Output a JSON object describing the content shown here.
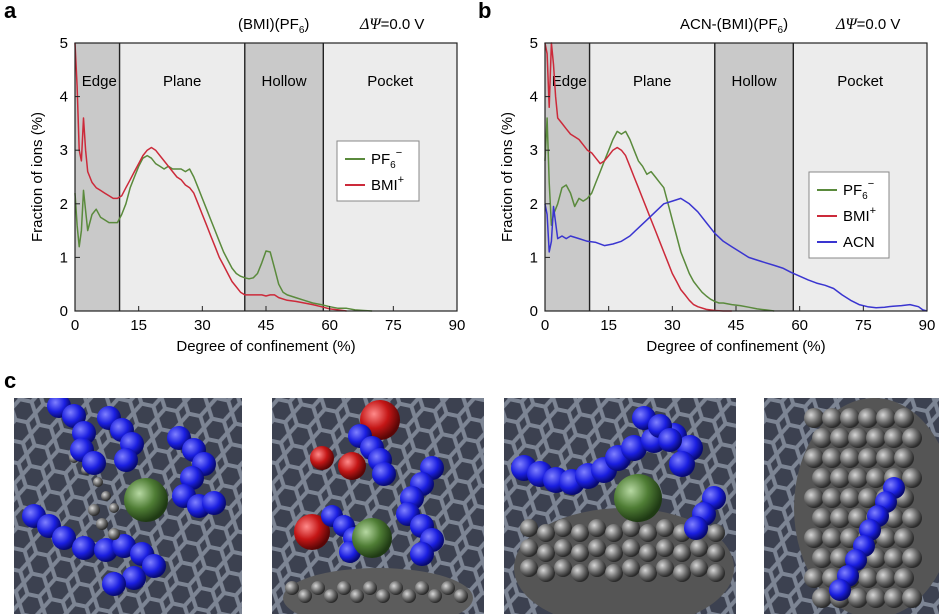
{
  "panels": {
    "a": "a",
    "b": "b",
    "c": "c"
  },
  "header_a": {
    "system": "(BMI)(PF",
    "system_sub": "6",
    "system_end": ")",
    "potential": "ΔΨ",
    "potential_value": "=0.0 V"
  },
  "header_b": {
    "system": "ACN-(BMI)(PF",
    "system_sub": "6",
    "system_end": ")",
    "potential": "ΔΨ",
    "potential_value": "=0.0 V"
  },
  "colors": {
    "pf6": "#5a8a3c",
    "bmi": "#cc2a3a",
    "acn": "#3a35d0",
    "region_dark": "#c9c9c9",
    "region_light": "#ececec"
  },
  "regions": [
    "Edge",
    "Plane",
    "Hollow",
    "Pocket"
  ],
  "chart_data": [
    {
      "type": "line",
      "xlabel": "Degree of confinement (%)",
      "ylabel": "Fraction of ions (%)",
      "xlim": [
        0,
        90
      ],
      "ylim": [
        0,
        5
      ],
      "xticks": [
        "0",
        "15",
        "30",
        "45",
        "60",
        "75",
        "90"
      ],
      "yticks": [
        "0",
        "1",
        "2",
        "3",
        "4",
        "5"
      ],
      "region_bounds": [
        0,
        10.5,
        40,
        58.5,
        90
      ],
      "legend_position": "right",
      "legend": [
        {
          "label": "PF",
          "sub": "6",
          "sup": "−"
        },
        {
          "label": "BMI",
          "sub": "",
          "sup": "+"
        }
      ],
      "series": [
        {
          "name": "PF6−",
          "x": [
            0,
            0.5,
            1,
            1.5,
            2,
            3,
            4,
            5,
            6,
            7,
            8,
            9,
            10,
            11,
            12,
            13,
            14,
            15,
            16,
            17,
            18,
            19,
            20,
            21,
            22,
            23,
            24,
            25,
            26,
            27,
            28,
            29,
            30,
            31,
            32,
            33,
            34,
            35,
            36,
            37,
            38,
            39,
            40,
            41,
            42,
            43,
            44,
            45,
            46,
            47,
            48,
            49,
            50,
            52,
            54,
            56,
            58,
            60,
            62,
            64,
            66,
            68,
            70
          ],
          "y": [
            2.2,
            1.6,
            1.2,
            1.5,
            2.25,
            1.5,
            1.8,
            1.9,
            1.75,
            1.7,
            1.65,
            1.65,
            1.65,
            1.8,
            2.0,
            2.3,
            2.5,
            2.7,
            2.85,
            2.9,
            2.85,
            2.75,
            2.7,
            2.65,
            2.7,
            2.65,
            2.65,
            2.65,
            2.6,
            2.65,
            2.5,
            2.3,
            2.1,
            1.9,
            1.7,
            1.5,
            1.3,
            1.1,
            0.95,
            0.8,
            0.7,
            0.65,
            0.62,
            0.6,
            0.62,
            0.7,
            0.9,
            1.12,
            1.1,
            0.8,
            0.5,
            0.35,
            0.3,
            0.25,
            0.2,
            0.15,
            0.12,
            0.08,
            0.05,
            0.05,
            0.02,
            0.01,
            0.0
          ]
        },
        {
          "name": "BMI+",
          "x": [
            0,
            0.5,
            1,
            1.5,
            2,
            2.5,
            3,
            4,
            5,
            6,
            7,
            8,
            9,
            10,
            11,
            12,
            13,
            14,
            15,
            16,
            17,
            18,
            19,
            20,
            21,
            22,
            23,
            24,
            25,
            26,
            27,
            28,
            29,
            30,
            31,
            32,
            33,
            34,
            35,
            36,
            37,
            38,
            39,
            40,
            41,
            42,
            43,
            44,
            45,
            46,
            47,
            48,
            50,
            52,
            54,
            56,
            58,
            60,
            62,
            64
          ],
          "y": [
            5.0,
            4.2,
            3.0,
            2.8,
            3.6,
            3.0,
            2.6,
            2.4,
            2.3,
            2.25,
            2.2,
            2.15,
            2.1,
            2.1,
            2.15,
            2.3,
            2.45,
            2.6,
            2.75,
            2.9,
            3.0,
            3.05,
            3.0,
            2.9,
            2.8,
            2.7,
            2.6,
            2.5,
            2.45,
            2.35,
            2.3,
            2.2,
            2.0,
            1.8,
            1.6,
            1.4,
            1.2,
            1.0,
            0.85,
            0.7,
            0.55,
            0.45,
            0.35,
            0.3,
            0.3,
            0.3,
            0.3,
            0.3,
            0.28,
            0.3,
            0.3,
            0.25,
            0.2,
            0.18,
            0.15,
            0.12,
            0.08,
            0.04,
            0.02,
            0.0
          ]
        }
      ]
    },
    {
      "type": "line",
      "xlabel": "Degree of confinement (%)",
      "ylabel": "Fraction of ions (%)",
      "xlim": [
        0,
        90
      ],
      "ylim": [
        0,
        5
      ],
      "xticks": [
        "0",
        "15",
        "30",
        "45",
        "60",
        "75",
        "90"
      ],
      "yticks": [
        "0",
        "1",
        "2",
        "3",
        "4",
        "5"
      ],
      "region_bounds": [
        0,
        10.5,
        40,
        58.5,
        90
      ],
      "legend_position": "right",
      "legend": [
        {
          "label": "PF",
          "sub": "6",
          "sup": "−"
        },
        {
          "label": "BMI",
          "sub": "",
          "sup": "+"
        },
        {
          "label": "ACN",
          "sub": "",
          "sup": ""
        }
      ],
      "series": [
        {
          "name": "PF6−",
          "x": [
            0,
            0.5,
            1,
            1.5,
            2,
            3,
            4,
            5,
            6,
            7,
            8,
            9,
            10,
            11,
            12,
            13,
            14,
            15,
            16,
            17,
            18,
            19,
            20,
            21,
            22,
            23,
            24,
            25,
            26,
            27,
            28,
            29,
            30,
            31,
            32,
            33,
            34,
            35,
            36,
            37,
            38,
            39,
            40,
            41,
            42,
            44,
            46,
            48,
            50,
            52,
            54
          ],
          "y": [
            2.8,
            3.6,
            2.4,
            1.6,
            1.8,
            2.0,
            2.3,
            2.35,
            2.2,
            1.95,
            2.1,
            2.05,
            2.1,
            2.2,
            2.4,
            2.6,
            2.8,
            3.0,
            3.2,
            3.35,
            3.3,
            3.35,
            3.2,
            3.0,
            2.8,
            2.7,
            2.55,
            2.6,
            2.5,
            2.4,
            2.3,
            2.0,
            1.7,
            1.4,
            1.1,
            0.9,
            0.7,
            0.55,
            0.45,
            0.35,
            0.28,
            0.22,
            0.18,
            0.15,
            0.15,
            0.12,
            0.1,
            0.07,
            0.04,
            0.02,
            0.0
          ]
        },
        {
          "name": "BMI+",
          "x": [
            0,
            0.5,
            1,
            1.5,
            2,
            2.5,
            3,
            4,
            5,
            6,
            7,
            8,
            9,
            10,
            11,
            12,
            13,
            14,
            15,
            16,
            17,
            18,
            19,
            20,
            21,
            22,
            23,
            24,
            25,
            26,
            27,
            28,
            29,
            30,
            31,
            32,
            33,
            34,
            35,
            36,
            38,
            40,
            42,
            44
          ],
          "y": [
            5.0,
            4.8,
            3.8,
            5.0,
            4.6,
            4.0,
            3.6,
            3.5,
            3.4,
            3.3,
            3.25,
            3.2,
            3.1,
            3.0,
            2.95,
            2.85,
            2.75,
            2.8,
            2.9,
            3.0,
            3.05,
            3.0,
            2.9,
            2.7,
            2.5,
            2.3,
            2.1,
            1.9,
            1.7,
            1.5,
            1.3,
            1.1,
            0.9,
            0.7,
            0.55,
            0.4,
            0.3,
            0.2,
            0.12,
            0.08,
            0.03,
            0.01,
            0.0,
            0.0
          ]
        },
        {
          "name": "ACN",
          "x": [
            0,
            0.5,
            1,
            1.5,
            2,
            3,
            4,
            5,
            6,
            8,
            10,
            12,
            14,
            16,
            18,
            20,
            22,
            24,
            26,
            28,
            30,
            32,
            34,
            36,
            38,
            40,
            42,
            44,
            46,
            48,
            50,
            52,
            54,
            56,
            58,
            60,
            62,
            64,
            66,
            68,
            70,
            72,
            74,
            76,
            78,
            80,
            82,
            84,
            86,
            88,
            89,
            90
          ],
          "y": [
            2.0,
            1.8,
            1.1,
            1.3,
            1.95,
            1.35,
            1.4,
            1.35,
            1.4,
            1.35,
            1.3,
            1.28,
            1.22,
            1.25,
            1.3,
            1.4,
            1.55,
            1.7,
            1.85,
            2.0,
            2.05,
            2.1,
            2.0,
            1.85,
            1.65,
            1.45,
            1.3,
            1.2,
            1.1,
            1.0,
            0.95,
            0.9,
            0.85,
            0.8,
            0.72,
            0.65,
            0.58,
            0.52,
            0.48,
            0.42,
            0.3,
            0.2,
            0.12,
            0.08,
            0.06,
            0.07,
            0.09,
            0.1,
            0.12,
            0.08,
            0.02,
            0.0
          ]
        }
      ]
    }
  ],
  "images": [
    {
      "label": "snapshot-1"
    },
    {
      "label": "snapshot-2"
    },
    {
      "label": "snapshot-3"
    },
    {
      "label": "snapshot-4"
    }
  ]
}
